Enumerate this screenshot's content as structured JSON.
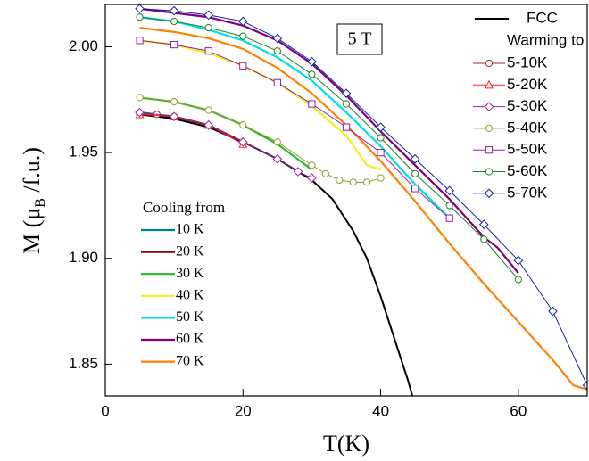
{
  "chart_data": {
    "type": "line",
    "annotation": "5 T",
    "xlabel": "T(K)",
    "ylabel": [
      "M (μ",
      "B",
      " /f.u.)"
    ],
    "xlim": [
      0,
      70
    ],
    "xticks": [
      0,
      20,
      40,
      60
    ],
    "ylim": [
      1.835,
      2.02
    ],
    "yticks": [
      {
        "value": 1.85,
        "label": "1.85"
      },
      {
        "value": 1.9,
        "label": "1.90"
      },
      {
        "value": 1.95,
        "label": "1.95"
      },
      {
        "value": 2.0,
        "label": "2.00"
      }
    ],
    "fcc": {
      "name": "FCC",
      "color": "#000000",
      "x": [
        5,
        10,
        15,
        20,
        25,
        30,
        33,
        36,
        38,
        40,
        42,
        44,
        44.6
      ],
      "values": [
        1.968,
        1.966,
        1.962,
        1.955,
        1.947,
        1.937,
        1.928,
        1.913,
        1.9,
        1.882,
        1.862,
        1.842,
        1.835
      ]
    },
    "cooling": {
      "title": "Cooling from",
      "series": [
        {
          "name": "10 K",
          "color": "#008080",
          "x": [
            5,
            10
          ],
          "values": [
            1.969,
            1.967
          ]
        },
        {
          "name": "20 K",
          "color": "#8b0000",
          "x": [
            5,
            10,
            15,
            20
          ],
          "values": [
            1.968,
            1.967,
            1.963,
            1.955
          ]
        },
        {
          "name": "30 K",
          "color": "#22bb22",
          "x": [
            5,
            10,
            15,
            20,
            25,
            30
          ],
          "values": [
            1.976,
            1.974,
            1.97,
            1.963,
            1.954,
            1.942
          ]
        },
        {
          "name": "40 K",
          "color": "#f0f020",
          "x": [
            5,
            10,
            15,
            20,
            25,
            30,
            35,
            38,
            40
          ],
          "values": [
            2.003,
            2.001,
            1.997,
            1.991,
            1.983,
            1.972,
            1.958,
            1.944,
            1.942
          ]
        },
        {
          "name": "50 K",
          "color": "#00e0e0",
          "x": [
            5,
            10,
            15,
            20,
            25,
            30,
            35,
            40,
            45,
            50
          ],
          "values": [
            2.014,
            2.012,
            2.008,
            2.003,
            1.995,
            1.984,
            1.969,
            1.953,
            1.935,
            1.919
          ]
        },
        {
          "name": "60 K",
          "color": "#800080",
          "x": [
            5,
            10,
            15,
            20,
            25,
            30,
            35,
            40,
            45,
            50,
            55,
            57,
            60
          ],
          "values": [
            2.018,
            2.016,
            2.014,
            2.01,
            2.003,
            1.992,
            1.977,
            1.96,
            1.944,
            1.928,
            1.91,
            1.905,
            1.893
          ]
        },
        {
          "name": "70 K",
          "color": "#ff8000",
          "x": [
            5,
            10,
            15,
            20,
            25,
            30,
            35,
            40,
            45,
            50,
            55,
            60,
            65,
            68,
            70
          ],
          "values": [
            2.009,
            2.007,
            2.004,
            1.999,
            1.99,
            1.978,
            1.963,
            1.946,
            1.927,
            1.907,
            1.888,
            1.87,
            1.852,
            1.84,
            1.838
          ]
        }
      ]
    },
    "warming": {
      "title": "Warming to",
      "series": [
        {
          "name": "5-10K",
          "color": "#a52a2a",
          "marker": "circle",
          "x": [
            5,
            7.5,
            10
          ],
          "values": [
            1.968,
            1.968,
            1.967
          ]
        },
        {
          "name": "5-20K",
          "color": "#ff2020",
          "marker": "triangle",
          "x": [
            5,
            10,
            15,
            20
          ],
          "values": [
            1.968,
            1.967,
            1.963,
            1.954
          ]
        },
        {
          "name": "5-30K",
          "color": "#a020a0",
          "marker": "diamond",
          "x": [
            5,
            10,
            15,
            20,
            25,
            28,
            30
          ],
          "values": [
            1.969,
            1.967,
            1.963,
            1.955,
            1.947,
            1.941,
            1.938
          ]
        },
        {
          "name": "5-40K",
          "color": "#999933",
          "marker": "circle",
          "x": [
            5,
            10,
            15,
            20,
            25,
            30,
            32,
            34,
            36,
            38,
            40
          ],
          "values": [
            1.976,
            1.974,
            1.97,
            1.963,
            1.955,
            1.944,
            1.94,
            1.937,
            1.936,
            1.936,
            1.938
          ]
        },
        {
          "name": "5-50K",
          "color": "#9020a0",
          "marker": "square",
          "x": [
            5,
            10,
            15,
            20,
            25,
            30,
            35,
            40,
            45,
            50
          ],
          "values": [
            2.003,
            2.001,
            1.998,
            1.991,
            1.983,
            1.973,
            1.962,
            1.95,
            1.933,
            1.919
          ]
        },
        {
          "name": "5-60K",
          "color": "#208020",
          "marker": "circle",
          "x": [
            5,
            10,
            15,
            20,
            25,
            30,
            35,
            40,
            45,
            50,
            55,
            60
          ],
          "values": [
            2.014,
            2.012,
            2.009,
            2.005,
            1.998,
            1.987,
            1.973,
            1.957,
            1.94,
            1.925,
            1.909,
            1.89
          ]
        },
        {
          "name": "5-70K",
          "color": "#1020a0",
          "marker": "diamond",
          "x": [
            5,
            10,
            15,
            20,
            25,
            30,
            35,
            40,
            45,
            50,
            55,
            60,
            65,
            70
          ],
          "values": [
            2.018,
            2.017,
            2.015,
            2.012,
            2.004,
            1.993,
            1.978,
            1.962,
            1.947,
            1.932,
            1.916,
            1.899,
            1.875,
            1.84
          ]
        }
      ]
    }
  }
}
